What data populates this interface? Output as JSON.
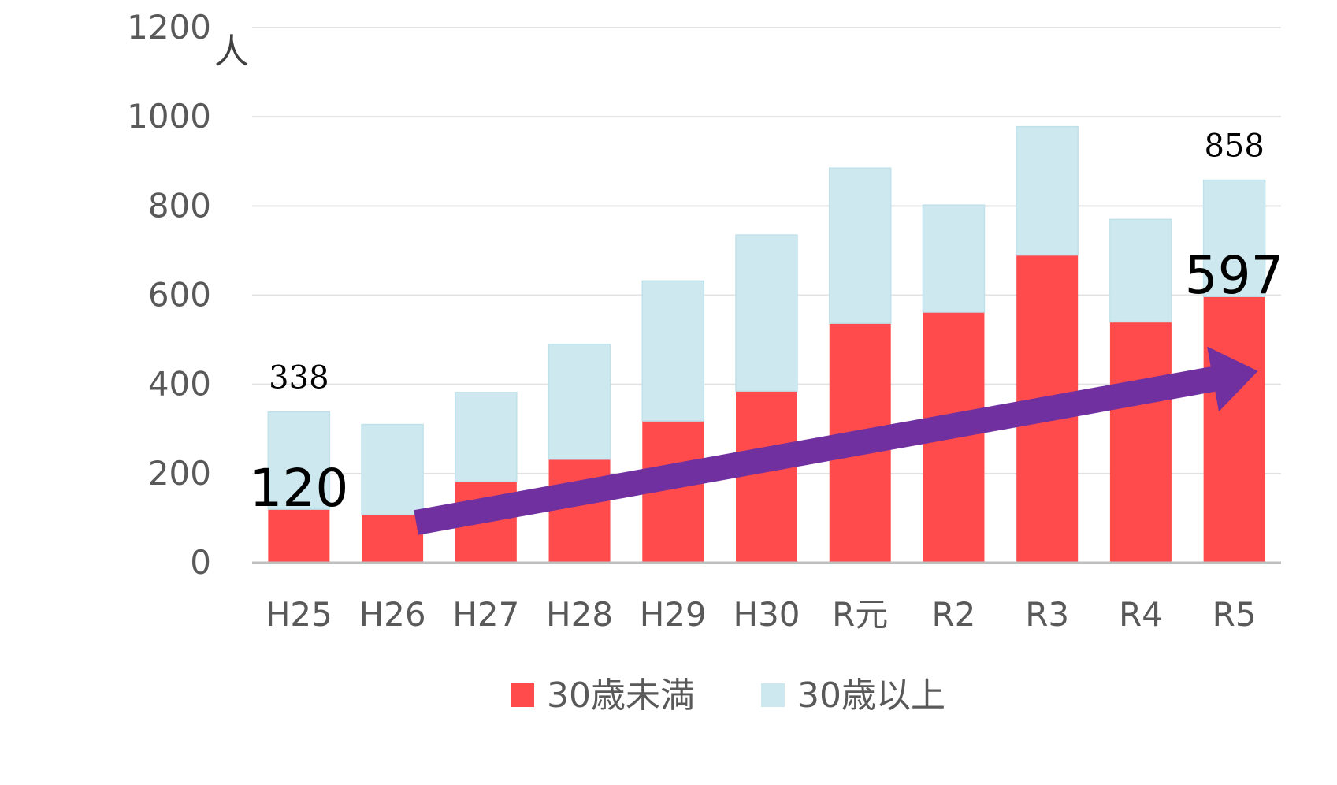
{
  "chart_data": {
    "type": "bar",
    "stacked": true,
    "unit": "人",
    "categories": [
      "H25",
      "H26",
      "H27",
      "H28",
      "H29",
      "H30",
      "R元",
      "R2",
      "R3",
      "R4",
      "R5"
    ],
    "series": [
      {
        "name": "30歳未満",
        "color": "#ff4b4b",
        "values": [
          120,
          108,
          182,
          232,
          318,
          385,
          537,
          562,
          690,
          540,
          597
        ]
      },
      {
        "name": "30歳以上",
        "color": "#cde8ef",
        "values": [
          218,
          202,
          200,
          258,
          314,
          350,
          348,
          240,
          288,
          230,
          261
        ]
      }
    ],
    "ylim": [
      0,
      1200
    ],
    "yticks": [
      0,
      200,
      400,
      600,
      800,
      1000,
      1200
    ],
    "grid": true,
    "legend": "bottom",
    "annotations": [
      {
        "text": "338",
        "category": "H25",
        "value": 338,
        "style": "serif"
      },
      {
        "text": "120",
        "category": "H25",
        "value": 120,
        "style": "large"
      },
      {
        "text": "858",
        "category": "R5",
        "value": 858,
        "style": "serif"
      },
      {
        "text": "597",
        "category": "R5",
        "value": 597,
        "style": "large"
      }
    ],
    "trend_arrow": {
      "from": {
        "category": "H26",
        "value": 90
      },
      "to": {
        "category": "R5",
        "value": 430
      },
      "color": "#7030a0"
    }
  }
}
